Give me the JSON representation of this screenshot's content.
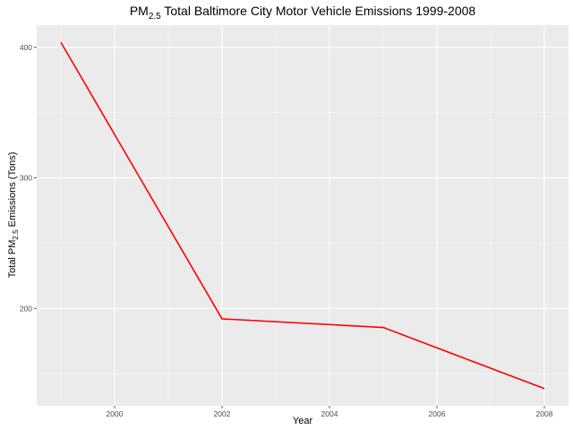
{
  "chart_data": {
    "type": "line",
    "title": {
      "prefix": "PM",
      "subscript": "2.5",
      "suffix": " Total Baltimore City Motor Vehicle Emissions 1999-2008"
    },
    "xlabel": "Year",
    "ylabel": {
      "prefix": "Total PM",
      "subscript": "2.5",
      "suffix": " Emissions (Tons)"
    },
    "x": [
      1999,
      2002,
      2005,
      2008
    ],
    "series": [
      {
        "values": [
          403.8,
          192.0,
          185.4,
          138.6
        ]
      }
    ],
    "xlim": [
      1998.55,
      2008.45
    ],
    "ylim": [
      125.4,
      417.0
    ],
    "x_ticks": [
      2000,
      2002,
      2004,
      2006,
      2008
    ],
    "x_tick_labels": [
      "2000",
      "2002",
      "2004",
      "2006",
      "2008"
    ],
    "y_ticks": [
      200,
      300,
      400
    ],
    "y_tick_labels": [
      "200",
      "300",
      "400"
    ],
    "grid": true,
    "legend": "none",
    "colors": {
      "line": "#ff0000",
      "panel": "#ebebeb",
      "grid_major": "#ffffff",
      "grid_minor": "#f5f5f5"
    }
  }
}
